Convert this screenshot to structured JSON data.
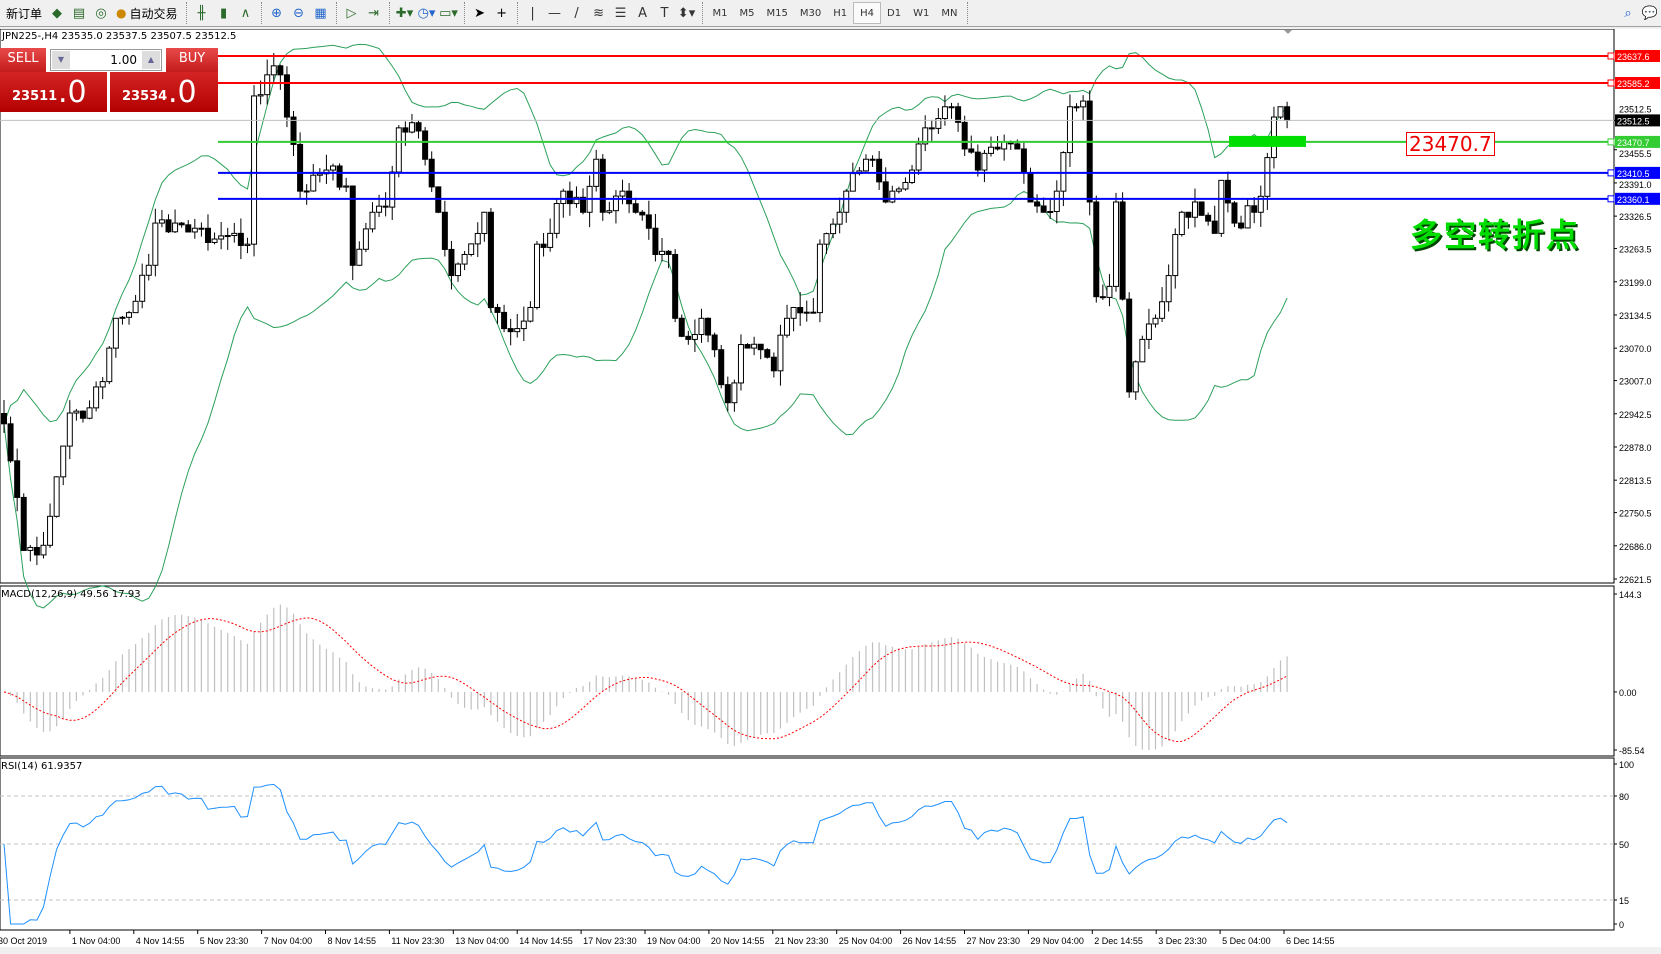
{
  "toolbar": {
    "new_order": "新订单",
    "auto_trading": "自动交易",
    "timeframes": [
      "M1",
      "M5",
      "M15",
      "M30",
      "H1",
      "H4",
      "D1",
      "W1",
      "MN"
    ],
    "active_timeframe": "H4"
  },
  "header": {
    "text": "JPN225-,H4  23535.0 23537.5 23507.5 23512.5"
  },
  "trade_panel": {
    "sell_label": "SELL",
    "buy_label": "BUY",
    "volume": "1.00",
    "sell_price_main": "23511",
    "sell_price_dec": ".0",
    "buy_price_main": "23534",
    "buy_price_dec": ".0"
  },
  "annotation": {
    "label": "23470.7",
    "text": "多空转折点"
  },
  "colors": {
    "resistance": "#ff0000",
    "pivot": "#33cc33",
    "support": "#0000ff",
    "bands": "#2ca05a",
    "macd_signal": "#ff0000",
    "rsi": "#1e90ff"
  },
  "chart_data": [
    {
      "type": "candlestick",
      "symbol": "JPN225-",
      "timeframe": "H4",
      "price_axis": [
        "23512.5",
        "23455.5",
        "23391.0",
        "23326.5",
        "23263.5",
        "23199.0",
        "23134.5",
        "23070.0",
        "23007.0",
        "22942.5",
        "22878.0",
        "22813.5",
        "22750.5",
        "22686.0",
        "22621.5"
      ],
      "ylim": [
        22621.5,
        23637.6
      ],
      "hlines": [
        {
          "price": 23637.6,
          "label": "23637.6",
          "color": "#ff0000"
        },
        {
          "price": 23585.2,
          "label": "23585.2",
          "color": "#ff0000"
        },
        {
          "price": 23512.5,
          "label": "23512.5",
          "color": "#000000"
        },
        {
          "price": 23470.7,
          "label": "23470.7",
          "color": "#33cc33"
        },
        {
          "price": 23410.5,
          "label": "23410.5",
          "color": "#0000ff"
        },
        {
          "price": 23360.1,
          "label": "23360.1",
          "color": "#0000ff"
        }
      ],
      "close_path": [
        [
          0,
          22923
        ],
        [
          2,
          22780
        ],
        [
          3,
          22677
        ],
        [
          6,
          22687
        ],
        [
          8,
          22820
        ],
        [
          10,
          22944
        ],
        [
          13,
          22954
        ],
        [
          15,
          23005
        ],
        [
          17,
          23128
        ],
        [
          19,
          23139
        ],
        [
          22,
          23231
        ],
        [
          23,
          23313
        ],
        [
          26,
          23313
        ],
        [
          29,
          23303
        ],
        [
          32,
          23282
        ],
        [
          35,
          23293
        ],
        [
          37,
          23272
        ],
        [
          38,
          23560
        ],
        [
          40,
          23601
        ],
        [
          42,
          23601
        ],
        [
          43,
          23519
        ],
        [
          45,
          23375
        ],
        [
          47,
          23406
        ],
        [
          49,
          23416
        ],
        [
          52,
          23385
        ],
        [
          53,
          23231
        ],
        [
          56,
          23334
        ],
        [
          58,
          23344
        ],
        [
          60,
          23498
        ],
        [
          62,
          23508
        ],
        [
          64,
          23437
        ],
        [
          66,
          23334
        ],
        [
          68,
          23211
        ],
        [
          70,
          23252
        ],
        [
          73,
          23334
        ],
        [
          74,
          23149
        ],
        [
          76,
          23108
        ],
        [
          78,
          23108
        ],
        [
          80,
          23149
        ],
        [
          81,
          23272
        ],
        [
          83,
          23293
        ],
        [
          85,
          23375
        ],
        [
          88,
          23334
        ],
        [
          90,
          23437
        ],
        [
          91,
          23334
        ],
        [
          94,
          23375
        ],
        [
          96,
          23334
        ],
        [
          98,
          23303
        ],
        [
          99,
          23252
        ],
        [
          101,
          23252
        ],
        [
          102,
          23128
        ],
        [
          104,
          23087
        ],
        [
          106,
          23128
        ],
        [
          108,
          23067
        ],
        [
          110,
          22964
        ],
        [
          112,
          23077
        ],
        [
          115,
          23067
        ],
        [
          117,
          23026
        ],
        [
          119,
          23128
        ],
        [
          120,
          23149
        ],
        [
          123,
          23139
        ],
        [
          124,
          23272
        ],
        [
          127,
          23334
        ],
        [
          128,
          23375
        ],
        [
          131,
          23437
        ],
        [
          132,
          23437
        ],
        [
          134,
          23354
        ],
        [
          135,
          23375
        ],
        [
          138,
          23416
        ],
        [
          140,
          23498
        ],
        [
          143,
          23539
        ],
        [
          144,
          23539
        ],
        [
          146,
          23457
        ],
        [
          148,
          23416
        ],
        [
          151,
          23457
        ],
        [
          154,
          23457
        ],
        [
          156,
          23354
        ],
        [
          158,
          23334
        ],
        [
          160,
          23375
        ],
        [
          162,
          23539
        ],
        [
          164,
          23550
        ],
        [
          165,
          23354
        ],
        [
          166,
          23170
        ],
        [
          168,
          23190
        ],
        [
          169,
          23354
        ],
        [
          171,
          22985
        ],
        [
          173,
          23087
        ],
        [
          175,
          23128
        ],
        [
          177,
          23211
        ],
        [
          179,
          23334
        ],
        [
          181,
          23354
        ],
        [
          184,
          23293
        ],
        [
          185,
          23396
        ],
        [
          187,
          23313
        ],
        [
          190,
          23334
        ],
        [
          191,
          23365
        ],
        [
          193,
          23519
        ],
        [
          194,
          23539
        ],
        [
          195,
          23512.5
        ]
      ],
      "indicator": "Bollinger Bands",
      "time_axis": [
        "30 Oct 2019",
        "1 Nov 04:00",
        "4 Nov 14:55",
        "5 Nov 23:30",
        "7 Nov 04:00",
        "8 Nov 14:55",
        "11 Nov 23:30",
        "13 Nov 04:00",
        "14 Nov 14:55",
        "17 Nov 23:30",
        "19 Nov 04:00",
        "20 Nov 14:55",
        "21 Nov 23:30",
        "25 Nov 04:00",
        "26 Nov 14:55",
        "27 Nov 23:30",
        "29 Nov 04:00",
        "2 Dec 14:55",
        "3 Dec 23:30",
        "5 Dec 04:00",
        "6 Dec 14:55"
      ]
    },
    {
      "type": "bar",
      "title": "MACD(12,26,9) 49.56 17.93",
      "ylim": [
        -85.54,
        144.3
      ],
      "axis": [
        "144.3",
        "0.00",
        "-85.54"
      ]
    },
    {
      "type": "line",
      "title": "RSI(14) 61.9357",
      "ylim": [
        0,
        100
      ],
      "axis": [
        "100",
        "80",
        "50",
        "15",
        "0"
      ],
      "levels": [
        80,
        50,
        15
      ]
    }
  ]
}
